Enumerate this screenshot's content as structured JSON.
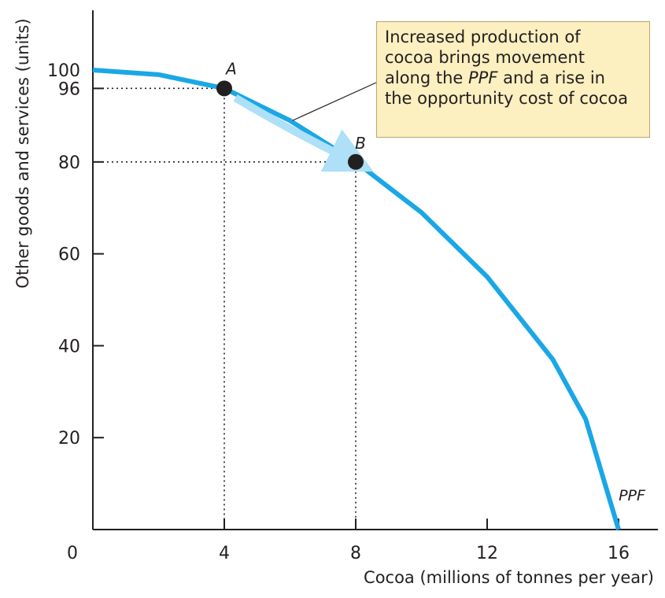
{
  "chart_data": {
    "type": "line",
    "xlabel": "Cocoa (millions of tonnes per year)",
    "ylabel": "Other goods and services (units)",
    "xlim": [
      0,
      17.2
    ],
    "ylim": [
      0,
      113
    ],
    "x_ticks": [
      4,
      8,
      12,
      16
    ],
    "y_ticks": [
      20,
      40,
      60,
      80,
      96,
      100
    ],
    "origin_label": "0",
    "series": [
      {
        "name": "PPF",
        "color": "#1aa7e6",
        "x": [
          0,
          2,
          4,
          6,
          8,
          10,
          12,
          14,
          15,
          16
        ],
        "y": [
          100,
          99,
          96,
          89,
          80,
          69,
          55,
          37,
          24,
          0
        ]
      }
    ],
    "points": [
      {
        "label": "A",
        "x": 4,
        "y": 96
      },
      {
        "label": "B",
        "x": 8,
        "y": 80
      }
    ],
    "arrow": {
      "from": "A",
      "to": "B",
      "color": "#aee0f7"
    },
    "annotation": {
      "lines": [
        [
          {
            "text": "Increased production of"
          }
        ],
        [
          {
            "text": "cocoa brings movement"
          }
        ],
        [
          {
            "text": "along the "
          },
          {
            "text": "PPF",
            "italic": true
          },
          {
            "text": " and a rise in"
          }
        ],
        [
          {
            "text": "the opportunity cost of cocoa"
          }
        ]
      ],
      "background": "#fcefc0"
    }
  }
}
